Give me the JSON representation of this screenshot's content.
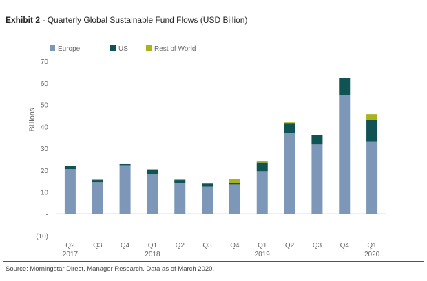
{
  "header": {
    "exhibit_label": "Exhibit 2",
    "title_sep": " - ",
    "title": "Quarterly Global Sustainable Fund Flows (USD Billion)"
  },
  "footer": {
    "source": "Source: Morningstar Direct, Manager Research. Data as of March 2020."
  },
  "colors": {
    "europe": "#7d97b8",
    "us": "#0f5354",
    "row": "#a9b31b",
    "axis_text": "#666666",
    "gridline": "#d9d9d9"
  },
  "chart_data": {
    "type": "bar",
    "stacked": true,
    "title": "Quarterly Global Sustainable Fund Flows (USD Billion)",
    "ylabel": "Billions",
    "xlabel": "",
    "ylim": [
      -10,
      70
    ],
    "yticks": [
      {
        "value": 70,
        "label": "70"
      },
      {
        "value": 60,
        "label": "60"
      },
      {
        "value": 50,
        "label": "50"
      },
      {
        "value": 40,
        "label": "40"
      },
      {
        "value": 30,
        "label": "30"
      },
      {
        "value": 20,
        "label": "20"
      },
      {
        "value": 10,
        "label": "10"
      },
      {
        "value": 0,
        "label": "-"
      },
      {
        "value": -10,
        "label": "(10)"
      }
    ],
    "legend": {
      "placement": "top-left"
    },
    "categories": [
      "Q2 2017",
      "Q3 2017",
      "Q4 2017",
      "Q1 2018",
      "Q2 2018",
      "Q3 2018",
      "Q4 2018",
      "Q1 2019",
      "Q2 2019",
      "Q3 2019",
      "Q4 2019",
      "Q1 2020"
    ],
    "tick_labels": [
      {
        "q": "Q2",
        "year": "2017"
      },
      {
        "q": "Q3",
        "year": ""
      },
      {
        "q": "Q4",
        "year": ""
      },
      {
        "q": "Q1",
        "year": "2018"
      },
      {
        "q": "Q2",
        "year": ""
      },
      {
        "q": "Q3",
        "year": ""
      },
      {
        "q": "Q4",
        "year": ""
      },
      {
        "q": "Q1",
        "year": "2019"
      },
      {
        "q": "Q2",
        "year": ""
      },
      {
        "q": "Q3",
        "year": ""
      },
      {
        "q": "Q4",
        "year": ""
      },
      {
        "q": "Q1",
        "year": "2020"
      }
    ],
    "series": [
      {
        "name": "Europe",
        "key": "europe",
        "values": [
          20.5,
          14.5,
          22.3,
          18.3,
          14.0,
          12.5,
          13.5,
          19.5,
          37.0,
          31.8,
          54.5,
          33.3
        ]
      },
      {
        "name": "US",
        "key": "us",
        "values": [
          1.5,
          1.0,
          0.6,
          1.7,
          1.5,
          1.3,
          0.7,
          4.0,
          4.6,
          4.4,
          7.7,
          10.0
        ]
      },
      {
        "name": "Rest of World",
        "key": "row",
        "values": [
          0.0,
          0.3,
          0.2,
          0.5,
          0.6,
          0.2,
          1.8,
          0.5,
          0.3,
          0.0,
          0.0,
          2.4
        ]
      }
    ]
  }
}
